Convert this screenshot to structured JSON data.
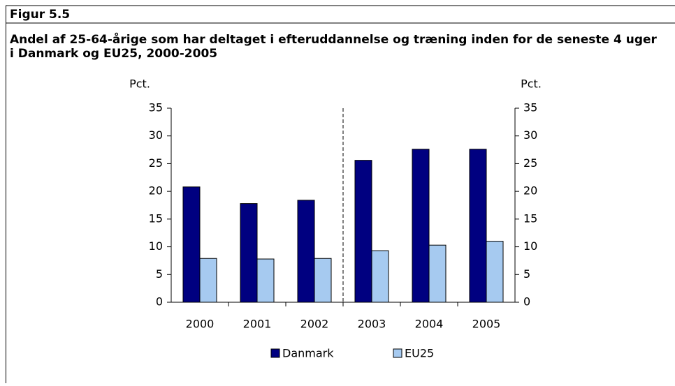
{
  "figure_label": "Figur 5.5",
  "chart_data": {
    "type": "bar",
    "title": "Andel af 25-64-årige som har deltaget i efteruddannelse og træning inden for de seneste 4 uger i Danmark og EU25, 2000-2005",
    "y_label": "Pct.",
    "y2_label": "Pct.",
    "categories": [
      "2000",
      "2001",
      "2002",
      "2003",
      "2004",
      "2005"
    ],
    "series": [
      {
        "name": "Danmark",
        "color": "#000080",
        "values": [
          20.8,
          17.8,
          18.4,
          25.6,
          27.6,
          27.6
        ]
      },
      {
        "name": "EU25",
        "color": "#a6caf0",
        "values": [
          7.9,
          7.8,
          7.9,
          9.3,
          10.3,
          11.0
        ]
      }
    ],
    "ylim": [
      0,
      35
    ],
    "yticks": [
      0,
      5,
      10,
      15,
      20,
      25,
      30,
      35
    ],
    "y2lim": [
      0,
      35
    ],
    "y2ticks": [
      0,
      5,
      10,
      15,
      20,
      25,
      30,
      35
    ],
    "grid": false,
    "legend": "bottom"
  }
}
